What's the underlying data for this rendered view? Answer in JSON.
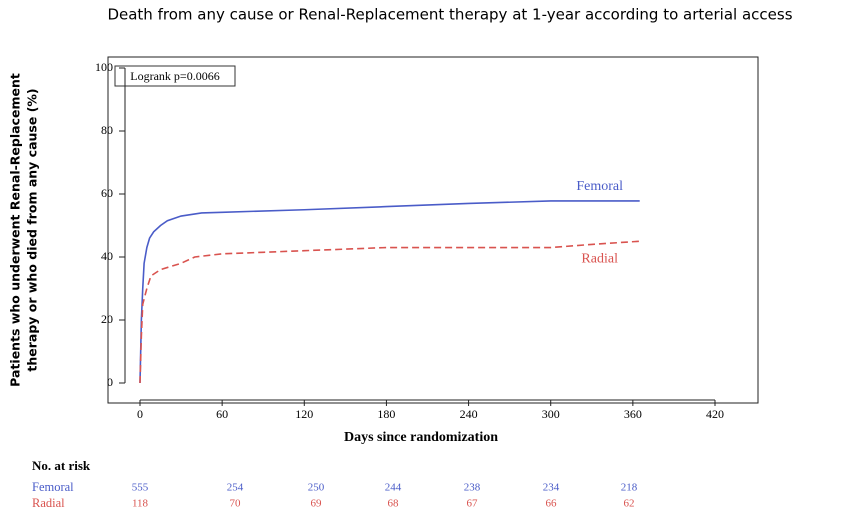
{
  "chart_data": {
    "type": "line",
    "title": "Death from any cause or Renal-Replacement therapy at 1-year according to arterial access",
    "ylabel": [
      "Patients who underwent Renal-Replacement",
      "therapy or who died from any cause (%)"
    ],
    "xlabel": "Days since randomization",
    "annotation": "Logrank p=0.0066",
    "xlim": [
      0,
      420
    ],
    "xticks": [
      0,
      60,
      120,
      180,
      240,
      300,
      360,
      420
    ],
    "ylim": [
      0,
      100
    ],
    "yticks": [
      0,
      20,
      40,
      60,
      80,
      100
    ],
    "series": [
      {
        "name": "Femoral",
        "color": "#4a5cc8",
        "line_style": "solid",
        "x": [
          0,
          1,
          2,
          3,
          5,
          7,
          10,
          15,
          20,
          30,
          45,
          60,
          120,
          180,
          240,
          300,
          365
        ],
        "values": [
          0,
          20,
          30,
          38,
          43,
          46,
          48,
          50,
          51.5,
          53,
          54,
          54.2,
          55,
          56,
          57,
          57.8,
          57.8
        ]
      },
      {
        "name": "Radial",
        "color": "#d9534f",
        "line_style": "dashed",
        "x": [
          0,
          1,
          2,
          5,
          8,
          15,
          30,
          40,
          60,
          90,
          120,
          180,
          240,
          300,
          330,
          365
        ],
        "values": [
          0,
          15,
          25,
          30,
          34,
          36,
          38,
          40,
          41,
          41.5,
          42,
          43,
          43,
          43,
          44,
          45
        ]
      }
    ],
    "risk_table": {
      "title": "No. at risk",
      "rows": [
        [
          555,
          254,
          250,
          244,
          238,
          234,
          218
        ],
        [
          118,
          70,
          69,
          68,
          67,
          66,
          62
        ]
      ]
    }
  }
}
